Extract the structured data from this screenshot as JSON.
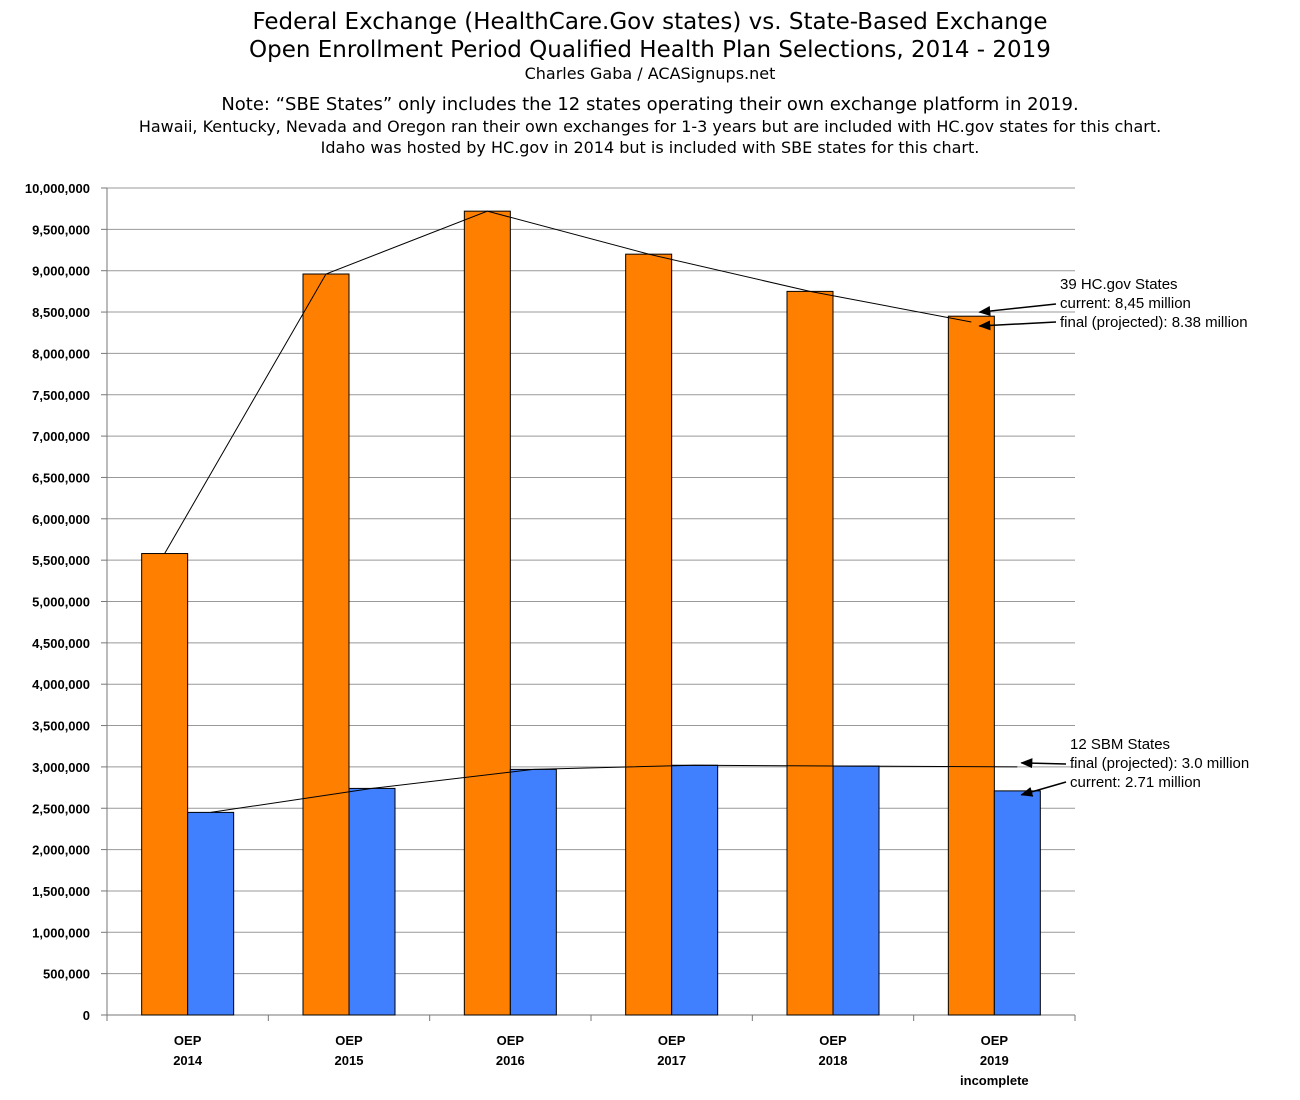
{
  "header": {
    "title": "Federal Exchange (HealthCare.Gov states) vs. State-Based Exchange\nOpen Enrollment Period Qualified Health Plan Selections, 2014 - 2019",
    "byline": "Charles Gaba / ACASignups.net",
    "note_main": "Note: “SBE States” only includes the 12 states operating their own exchange platform in 2019.",
    "note_lines": [
      "Hawaii, Kentucky, Nevada and Oregon ran their own exchanges for 1-3 years but are included with HC.gov states for this chart.",
      "Idaho was hosted by HC.gov in 2014 but is included with SBE states for this chart."
    ]
  },
  "colors": {
    "hcgov": "#ff8000",
    "sbm": "#4080ff",
    "grid": "#999999"
  },
  "chart_data": {
    "type": "bar",
    "categories": [
      [
        "OEP",
        "2014"
      ],
      [
        "OEP",
        "2015"
      ],
      [
        "OEP",
        "2016"
      ],
      [
        "OEP",
        "2017"
      ],
      [
        "OEP",
        "2018"
      ],
      [
        "OEP",
        "2019",
        "incomplete"
      ]
    ],
    "series": [
      {
        "values": [
          5580000,
          8960000,
          9720000,
          9200000,
          8750000,
          8450000
        ],
        "color": "#ff8000"
      },
      {
        "values": [
          2450000,
          2740000,
          2970000,
          3020000,
          3010000,
          2710000
        ],
        "color": "#4080ff"
      }
    ],
    "trend_lines": [
      {
        "series": 0,
        "points": [
          5580000,
          8960000,
          9720000,
          9200000,
          8750000,
          8380000
        ]
      },
      {
        "series": 1,
        "points": [
          2450000,
          2740000,
          2970000,
          3020000,
          3010000,
          3000000
        ]
      }
    ],
    "yticks": [
      0,
      500000,
      1000000,
      1500000,
      2000000,
      2500000,
      3000000,
      3500000,
      4000000,
      4500000,
      5000000,
      5500000,
      6000000,
      6500000,
      7000000,
      7500000,
      8000000,
      8500000,
      9000000,
      9500000,
      10000000
    ],
    "ytick_labels": [
      "0",
      "500,000",
      "1,000,000",
      "1,500,000",
      "2,000,000",
      "2,500,000",
      "3,000,000",
      "3,500,000",
      "4,000,000",
      "4,500,000",
      "5,000,000",
      "5,500,000",
      "6,000,000",
      "6,500,000",
      "7,000,000",
      "7,500,000",
      "8,000,000",
      "8,500,000",
      "9,000,000",
      "9,500,000",
      "10,000,000"
    ],
    "ylim": [
      0,
      10000000
    ],
    "grid": true,
    "xlabel": "",
    "ylabel": "",
    "annotations": {
      "hcgov": {
        "lines": [
          "39 HC.gov States",
          "current: 8,45 million",
          "final (projected): 8.38 million"
        ],
        "arrow_targets": [
          8450000,
          8380000
        ]
      },
      "sbm": {
        "lines": [
          "12 SBM States",
          "final (projected): 3.0 million",
          "current: 2.71 million"
        ],
        "arrow_targets": [
          3000000,
          2710000
        ]
      }
    }
  }
}
